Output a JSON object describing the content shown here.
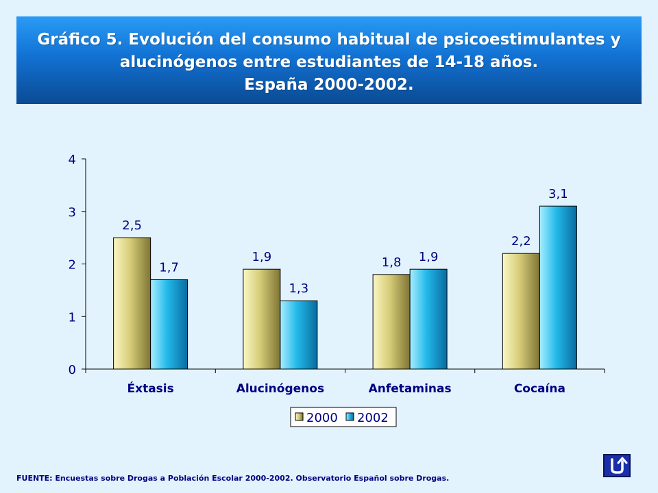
{
  "title": {
    "line1": "Gráfico 5. Evolución del  consumo habitual de psicoestimulantes  y",
    "line2": "alucinógenos entre estudiantes de 14-18 años.",
    "line3": "España 2000-2002."
  },
  "chart_data": {
    "type": "bar",
    "categories": [
      "Éxtasis",
      "Alucinógenos",
      "Anfetaminas",
      "Cocaína"
    ],
    "series": [
      {
        "name": "2000",
        "values": [
          2.5,
          1.9,
          1.8,
          2.2
        ],
        "labels": [
          "2,5",
          "1,9",
          "1,8",
          "2,2"
        ],
        "color": "#b5a94f"
      },
      {
        "name": "2002",
        "values": [
          1.7,
          1.3,
          1.9,
          3.1
        ],
        "labels": [
          "1,7",
          "1,3",
          "1,9",
          "3,1"
        ],
        "color": "#11a4df"
      }
    ],
    "ylim": [
      0,
      4
    ],
    "yticks": [
      "0",
      "1",
      "2",
      "3",
      "4"
    ],
    "grid": false,
    "legend": "bottom"
  },
  "source": "FUENTE: Encuestas sobre Drogas a Población Escolar 2000-2002.  Observatorio Español sobre Drogas.",
  "return_button": {
    "icon": "return-arrow-icon"
  }
}
